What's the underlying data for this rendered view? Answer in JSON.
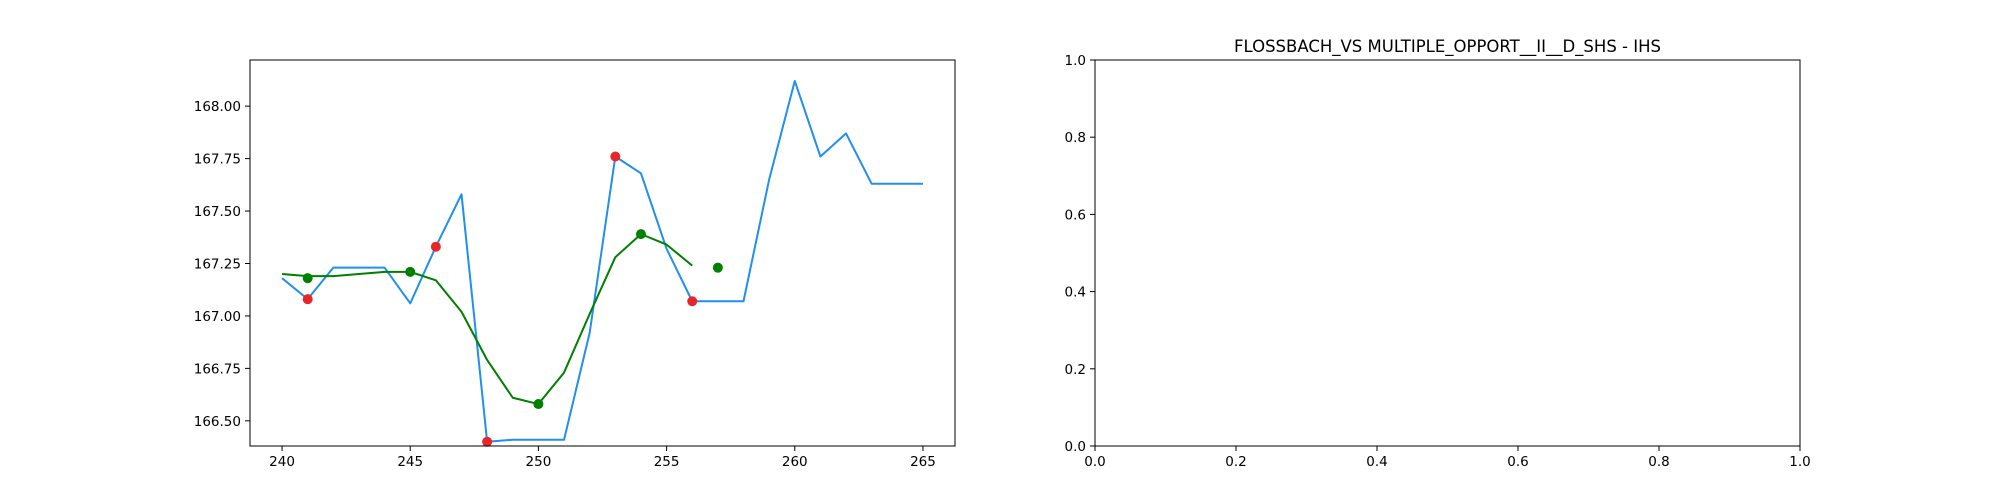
{
  "colors": {
    "price_line": "#1f8ff0",
    "smooth_line": "#007f00",
    "smooth_points": "#008000",
    "extreme_points": "#e8262a",
    "axes": "#000000",
    "background": "#ffffff"
  },
  "chart_data": [
    {
      "type": "line",
      "title": "",
      "xlabel": "",
      "ylabel": "",
      "xlim": [
        238.75,
        266.25
      ],
      "ylim": [
        166.38,
        168.22
      ],
      "x_ticks": [
        240,
        245,
        250,
        255,
        260,
        265
      ],
      "x_tick_labels": [
        "240",
        "245",
        "250",
        "255",
        "260",
        "265"
      ],
      "y_ticks": [
        166.5,
        166.75,
        167.0,
        167.25,
        167.5,
        167.75,
        168.0
      ],
      "y_tick_labels": [
        "166.50",
        "166.75",
        "167.00",
        "167.25",
        "167.50",
        "167.75",
        "168.00"
      ],
      "grid": false,
      "series": [
        {
          "kind": "line",
          "color_key": "price_line",
          "x": [
            240,
            241,
            242,
            243,
            244,
            245,
            246,
            247,
            248,
            249,
            250,
            251,
            252,
            253,
            254,
            255,
            256,
            257,
            258,
            259,
            260,
            261,
            262,
            263,
            264,
            265
          ],
          "values": [
            167.18,
            167.08,
            167.23,
            167.23,
            167.23,
            167.06,
            167.33,
            167.58,
            166.4,
            166.41,
            166.41,
            166.41,
            166.92,
            167.76,
            167.68,
            167.32,
            167.07,
            167.07,
            167.07,
            167.65,
            168.12,
            167.76,
            167.87,
            167.63,
            167.63,
            167.63
          ]
        },
        {
          "kind": "line",
          "color_key": "smooth_line",
          "x": [
            240,
            241,
            242,
            243,
            244,
            245,
            246,
            247,
            248,
            249,
            250,
            251,
            252,
            253,
            254,
            255,
            256
          ],
          "values": [
            167.2,
            167.19,
            167.19,
            167.2,
            167.21,
            167.21,
            167.17,
            167.02,
            166.79,
            166.61,
            166.58,
            166.73,
            167.01,
            167.28,
            167.39,
            167.34,
            167.24
          ]
        },
        {
          "kind": "scatter",
          "color_key": "smooth_points",
          "x": [
            241,
            245,
            250,
            254,
            257
          ],
          "values": [
            167.18,
            167.21,
            166.58,
            167.39,
            167.23
          ]
        },
        {
          "kind": "scatter",
          "color_key": "extreme_points",
          "x": [
            241,
            246,
            248,
            253,
            256
          ],
          "values": [
            167.08,
            167.33,
            166.4,
            167.76,
            167.07
          ]
        }
      ]
    },
    {
      "type": "line",
      "title": "FLOSSBACH_VS MULTIPLE_OPPORT__II__D_SHS - IHS",
      "xlabel": "",
      "ylabel": "",
      "xlim": [
        0,
        1
      ],
      "ylim": [
        0,
        1
      ],
      "x_ticks": [
        0,
        0.2,
        0.4,
        0.6,
        0.8,
        1.0
      ],
      "x_tick_labels": [
        "0.0",
        "0.2",
        "0.4",
        "0.6",
        "0.8",
        "1.0"
      ],
      "y_ticks": [
        0,
        0.2,
        0.4,
        0.6,
        0.8,
        1.0
      ],
      "y_tick_labels": [
        "0.0",
        "0.2",
        "0.4",
        "0.6",
        "0.8",
        "1.0"
      ],
      "grid": false,
      "series": []
    }
  ]
}
